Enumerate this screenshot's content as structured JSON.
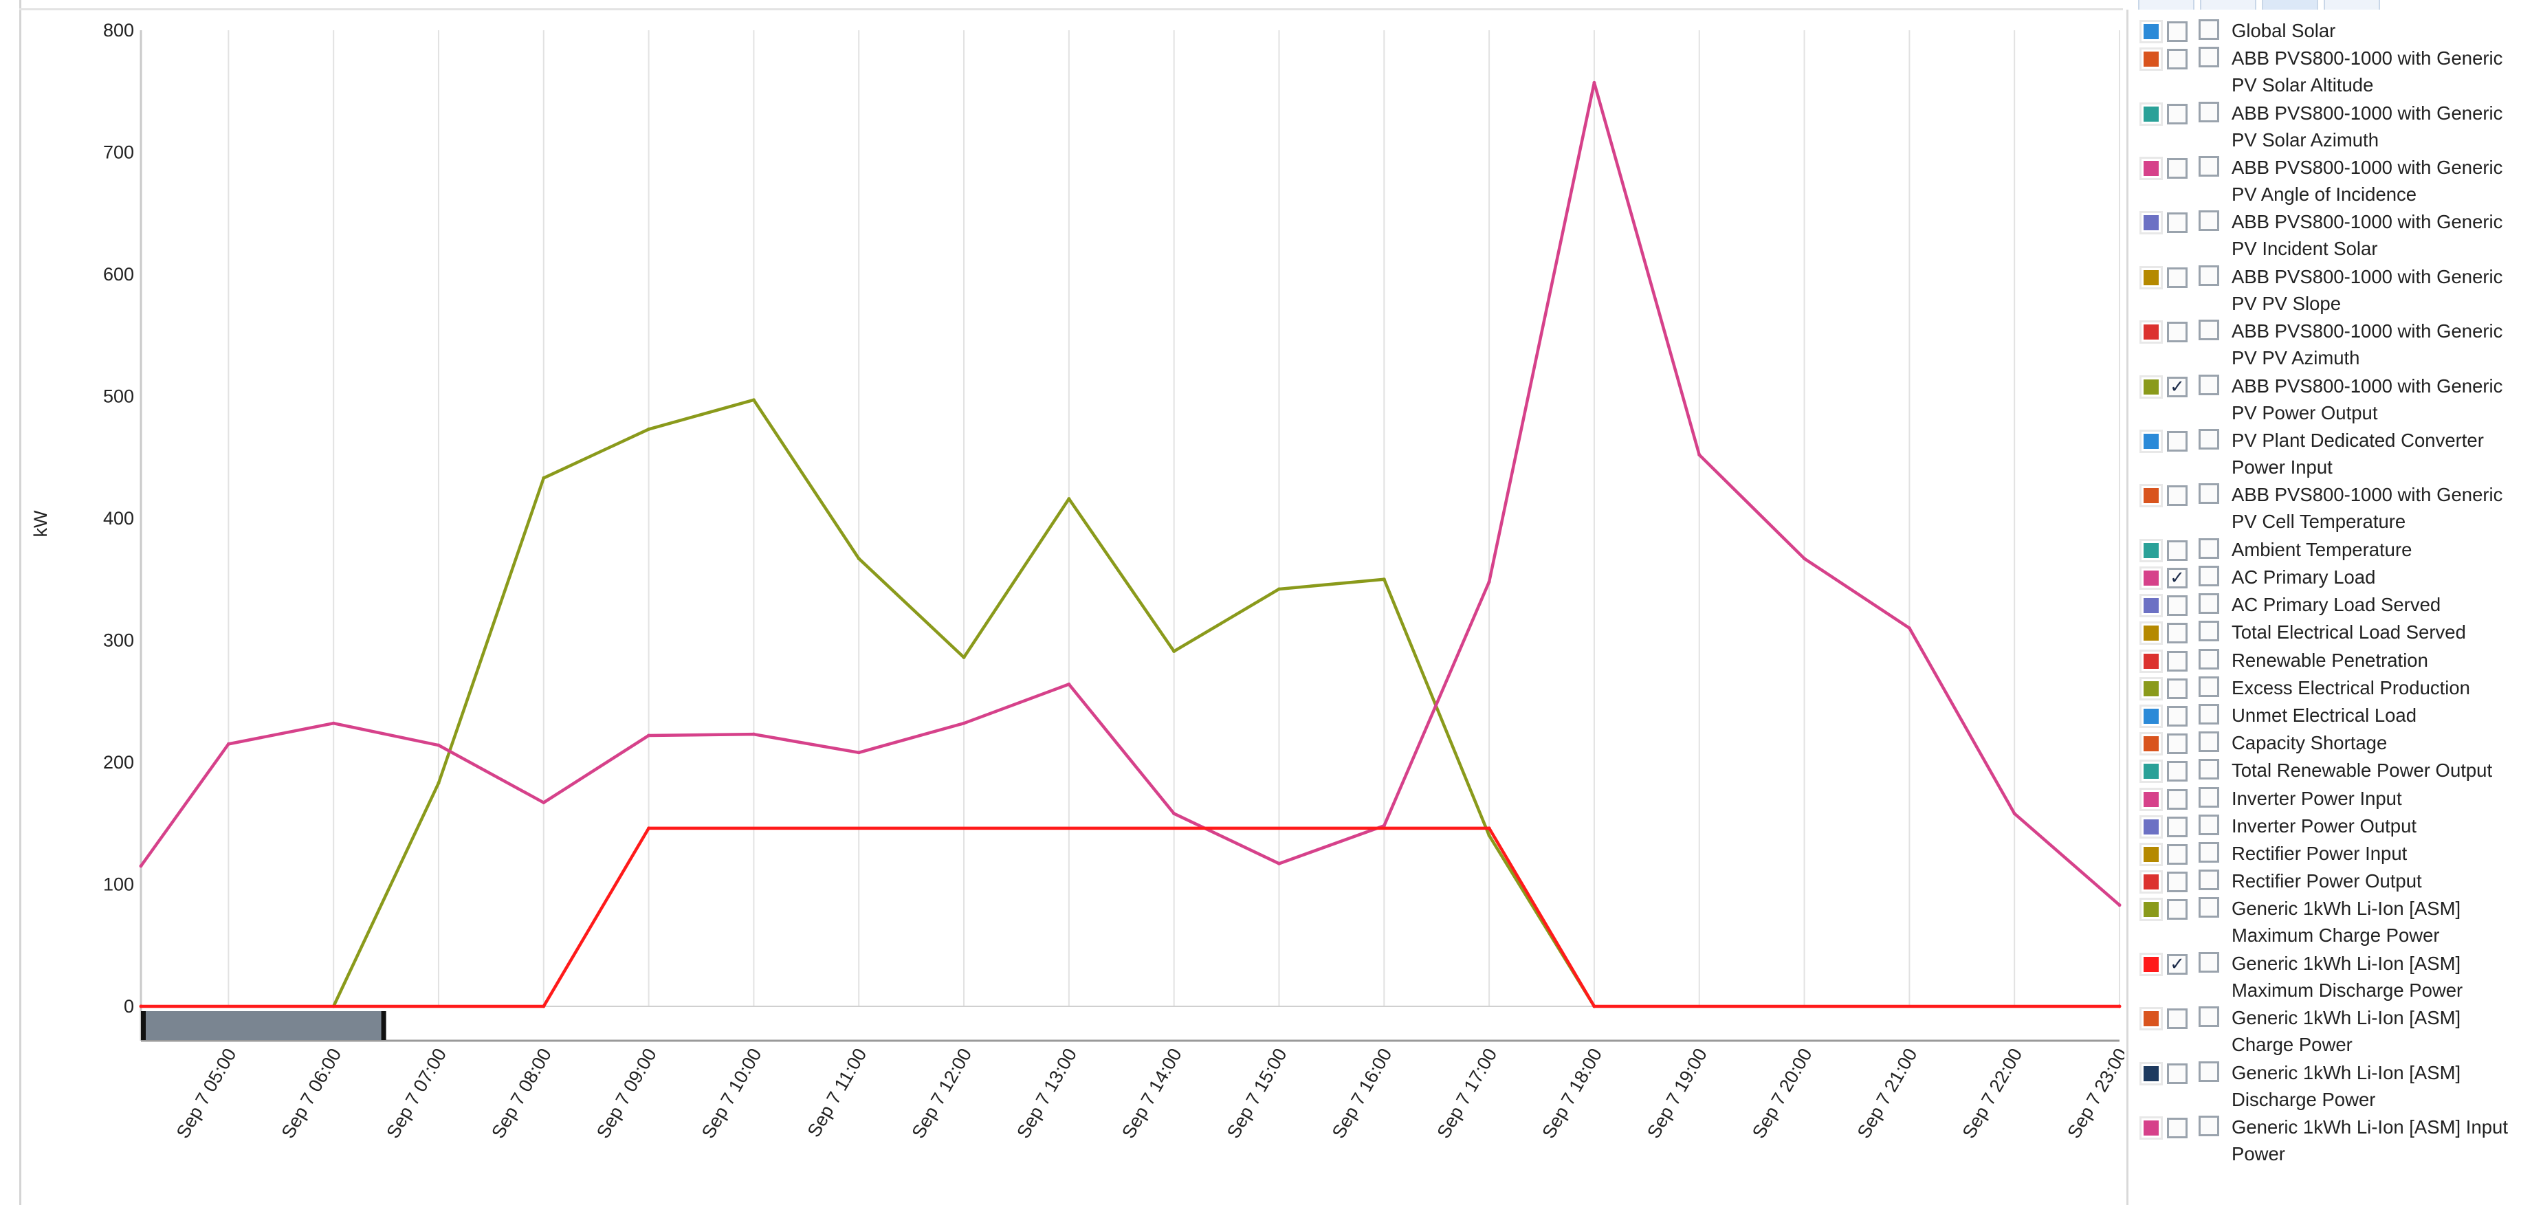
{
  "chart_data": {
    "type": "line",
    "ylabel": "kW",
    "ylim": [
      0,
      800
    ],
    "yticks": [
      "0",
      "100",
      "200",
      "300",
      "400",
      "500",
      "600",
      "700",
      "800"
    ],
    "x_tick_labels": [
      "Sep 7 05:00",
      "Sep 7 06:00",
      "Sep 7 07:00",
      "Sep 7 08:00",
      "Sep 7 09:00",
      "Sep 7 10:00",
      "Sep 7 11:00",
      "Sep 7 12:00",
      "Sep 7 13:00",
      "Sep 7 14:00",
      "Sep 7 15:00",
      "Sep 7 16:00",
      "Sep 7 17:00",
      "Sep 7 18:00",
      "Sep 7 19:00",
      "Sep 7 20:00",
      "Sep 7 21:00",
      "Sep 7 22:00",
      "Sep 7 23:00"
    ],
    "x_range": [
      "Sep 7 04:10",
      "Sep 7 23:00"
    ],
    "grid": "vertical",
    "legend_position": "right",
    "series": [
      {
        "name": "ABB PVS800-1000 with Generic PV Power Output",
        "color": "#8a9a1b",
        "points": [
          [
            "Sep 7 06:00",
            0
          ],
          [
            "Sep 7 07:00",
            183
          ],
          [
            "Sep 7 08:00",
            433
          ],
          [
            "Sep 7 09:00",
            473
          ],
          [
            "Sep 7 10:00",
            497
          ],
          [
            "Sep 7 11:00",
            367
          ],
          [
            "Sep 7 12:00",
            286
          ],
          [
            "Sep 7 13:00",
            416
          ],
          [
            "Sep 7 14:00",
            291
          ],
          [
            "Sep 7 15:00",
            342
          ],
          [
            "Sep 7 16:00",
            350
          ],
          [
            "Sep 7 17:00",
            140
          ],
          [
            "Sep 7 18:00",
            0
          ]
        ]
      },
      {
        "name": "AC Primary Load",
        "color": "#d6418a",
        "points": [
          [
            "Sep 7 04:10",
            115
          ],
          [
            "Sep 7 05:00",
            215
          ],
          [
            "Sep 7 06:00",
            232
          ],
          [
            "Sep 7 07:00",
            214
          ],
          [
            "Sep 7 08:00",
            167
          ],
          [
            "Sep 7 09:00",
            222
          ],
          [
            "Sep 7 10:00",
            223
          ],
          [
            "Sep 7 11:00",
            208
          ],
          [
            "Sep 7 12:00",
            232
          ],
          [
            "Sep 7 13:00",
            264
          ],
          [
            "Sep 7 14:00",
            158
          ],
          [
            "Sep 7 15:00",
            117
          ],
          [
            "Sep 7 16:00",
            148
          ],
          [
            "Sep 7 17:00",
            348
          ],
          [
            "Sep 7 18:00",
            757
          ],
          [
            "Sep 7 19:00",
            452
          ],
          [
            "Sep 7 20:00",
            367
          ],
          [
            "Sep 7 21:00",
            310
          ],
          [
            "Sep 7 22:00",
            158
          ],
          [
            "Sep 7 23:00",
            83
          ]
        ]
      },
      {
        "name": "Generic 1kWh Li-Ion [ASM] Maximum Discharge Power",
        "color": "#ff1a1a",
        "points": [
          [
            "Sep 7 04:10",
            0
          ],
          [
            "Sep 7 08:00",
            0
          ],
          [
            "Sep 7 09:00",
            146
          ],
          [
            "Sep 7 17:00",
            146
          ],
          [
            "Sep 7 18:00",
            0
          ],
          [
            "Sep 7 23:00",
            0
          ]
        ]
      }
    ]
  },
  "legend": {
    "items": [
      {
        "label": "Global Solar",
        "color": "#2b8ad8",
        "checked": false
      },
      {
        "label": "ABB PVS800-1000 with Generic PV Solar Altitude",
        "color": "#d9541e",
        "checked": false
      },
      {
        "label": "ABB PVS800-1000 with Generic PV Solar Azimuth",
        "color": "#2aa198",
        "checked": false
      },
      {
        "label": "ABB PVS800-1000 with Generic PV Angle of Incidence",
        "color": "#d6418a",
        "checked": false
      },
      {
        "label": "ABB PVS800-1000 with Generic PV Incident Solar",
        "color": "#6c71c4",
        "checked": false
      },
      {
        "label": "ABB PVS800-1000 with Generic PV PV Slope",
        "color": "#b58900",
        "checked": false
      },
      {
        "label": "ABB PVS800-1000 with Generic PV PV Azimuth",
        "color": "#dc322f",
        "checked": false
      },
      {
        "label": "ABB PVS800-1000 with Generic PV Power Output",
        "color": "#8a9a1b",
        "checked": true
      },
      {
        "label": "PV Plant Dedicated Converter Power Input",
        "color": "#2b8ad8",
        "checked": false
      },
      {
        "label": "ABB PVS800-1000 with Generic PV Cell Temperature",
        "color": "#d9541e",
        "checked": false
      },
      {
        "label": "Ambient Temperature",
        "color": "#2aa198",
        "checked": false
      },
      {
        "label": "AC Primary Load",
        "color": "#d6418a",
        "checked": true
      },
      {
        "label": "AC Primary Load Served",
        "color": "#6c71c4",
        "checked": false
      },
      {
        "label": "Total Electrical Load Served",
        "color": "#b58900",
        "checked": false
      },
      {
        "label": "Renewable Penetration",
        "color": "#dc322f",
        "checked": false
      },
      {
        "label": "Excess Electrical Production",
        "color": "#8a9a1b",
        "checked": false
      },
      {
        "label": "Unmet Electrical Load",
        "color": "#2b8ad8",
        "checked": false
      },
      {
        "label": "Capacity Shortage",
        "color": "#d9541e",
        "checked": false
      },
      {
        "label": "Total Renewable Power Output",
        "color": "#2aa198",
        "checked": false
      },
      {
        "label": "Inverter Power Input",
        "color": "#d6418a",
        "checked": false
      },
      {
        "label": "Inverter Power Output",
        "color": "#6c71c4",
        "checked": false
      },
      {
        "label": "Rectifier Power Input",
        "color": "#b58900",
        "checked": false
      },
      {
        "label": "Rectifier Power Output",
        "color": "#dc322f",
        "checked": false
      },
      {
        "label": "Generic 1kWh Li-Ion [ASM] Maximum Charge Power",
        "color": "#8a9a1b",
        "checked": false
      },
      {
        "label": "Generic 1kWh Li-Ion [ASM] Maximum Discharge Power",
        "color": "#ff1a1a",
        "checked": true
      },
      {
        "label": "Generic 1kWh Li-Ion [ASM] Charge Power",
        "color": "#d9541e",
        "checked": false
      },
      {
        "label": "Generic 1kWh Li-Ion [ASM] Discharge Power",
        "color": "#1e3a5f",
        "checked": false
      },
      {
        "label": "Generic 1kWh Li-Ion [ASM] Input Power",
        "color": "#d6418a",
        "checked": false
      }
    ]
  },
  "range_slider": {
    "start": "Sep 7 04:10",
    "end": "Sep 7 06:30"
  }
}
